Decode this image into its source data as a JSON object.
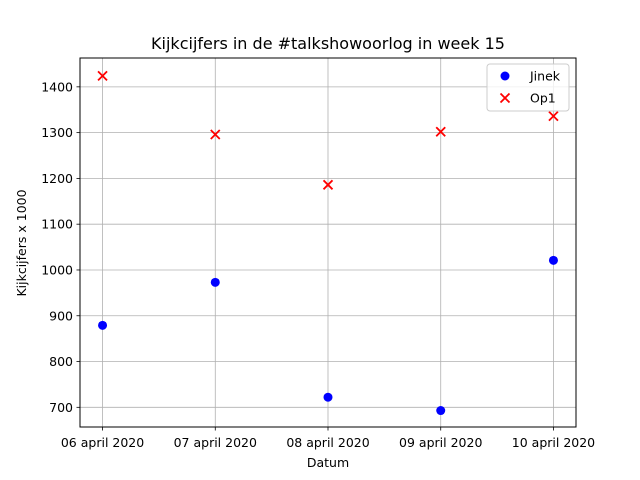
{
  "chart_data": {
    "type": "scatter",
    "title": "Kijkcijfers in de #talkshowoorlog in week 15",
    "xlabel": "Datum",
    "ylabel": "Kijkcijfers x 1000",
    "categories": [
      "06 april 2020",
      "07 april 2020",
      "08 april 2020",
      "09 april 2020",
      "10 april 2020"
    ],
    "ylim": [
      657,
      1463
    ],
    "yticks": [
      700,
      800,
      900,
      1000,
      1100,
      1200,
      1300,
      1400
    ],
    "grid": true,
    "legend_position": "top-right",
    "series": [
      {
        "name": "Jinek",
        "marker": "circle",
        "color": "#0000ff",
        "values": [
          879,
          973,
          722,
          693,
          1021
        ]
      },
      {
        "name": "Op1",
        "marker": "x",
        "color": "#ff0000",
        "values": [
          1424,
          1296,
          1186,
          1302,
          1336
        ]
      }
    ]
  }
}
